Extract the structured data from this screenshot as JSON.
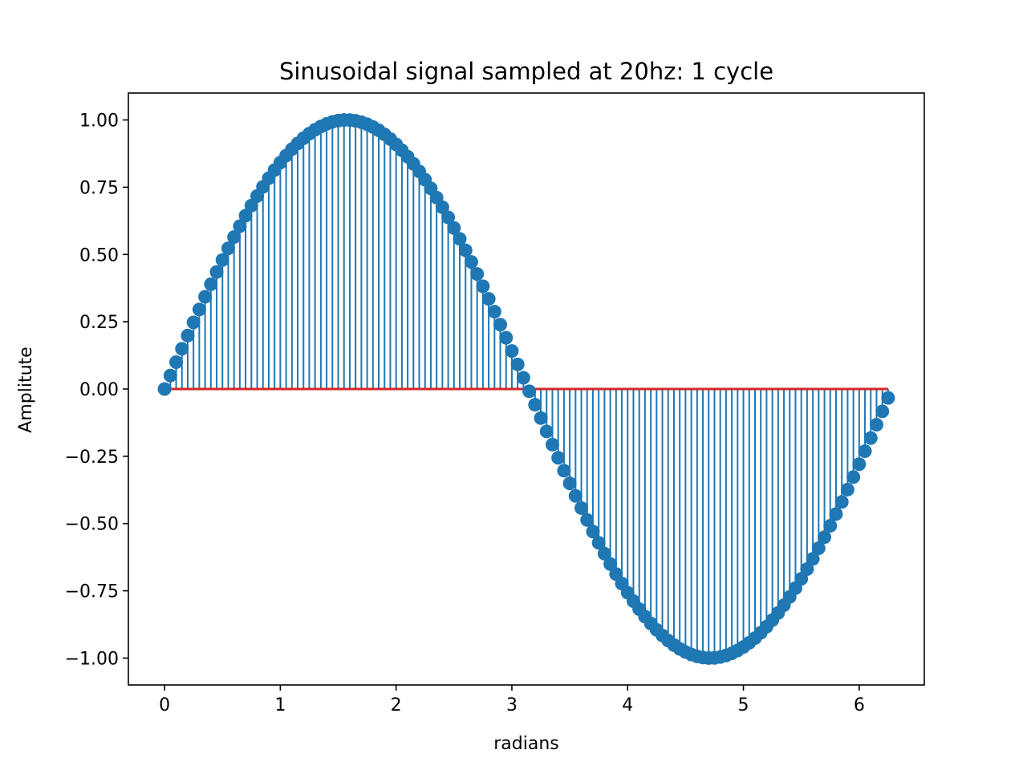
{
  "chart_data": {
    "type": "stem",
    "title": "Sinusoidal signal sampled at 20hz: 1 cycle",
    "xlabel": "radians",
    "ylabel": "Amplitute",
    "xlim": [
      -0.3125,
      6.5625
    ],
    "ylim": [
      -1.1,
      1.1
    ],
    "xticks": [
      0,
      1,
      2,
      3,
      4,
      5,
      6
    ],
    "xtick_labels": [
      "0",
      "1",
      "2",
      "3",
      "4",
      "5",
      "6"
    ],
    "yticks": [
      -1.0,
      -0.75,
      -0.5,
      -0.25,
      0.0,
      0.25,
      0.5,
      0.75,
      1.0
    ],
    "ytick_labels": [
      "−1.00",
      "−0.75",
      "−0.50",
      "−0.25",
      "0.00",
      "0.25",
      "0.50",
      "0.75",
      "1.00"
    ],
    "grid": false,
    "series": [
      {
        "function": "sin",
        "x_start": 0,
        "x_step": 0.05,
        "num_points": 126,
        "x_end": 6.25,
        "marker_color": "#1f77b4",
        "stem_color": "#1f77b4"
      }
    ],
    "baseline": {
      "y": 0,
      "x_range": [
        0,
        6.25
      ],
      "color": "#d62728"
    }
  }
}
